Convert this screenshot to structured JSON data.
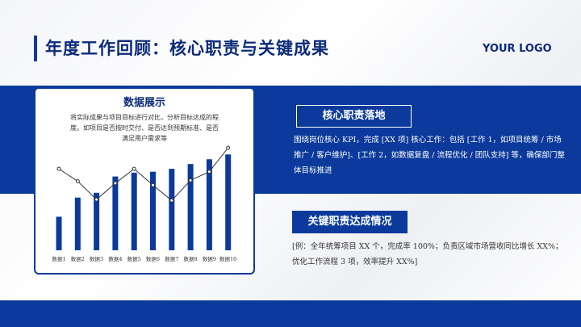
{
  "header": {
    "title": "年度工作回顾：核心职责与关键成果",
    "logo": "YOUR LOGO"
  },
  "chart_data": {
    "type": "bar",
    "title": "数据展示",
    "subtitle": "将实际成果与项目目标进行对比，分析目标达成的程度。如项目是否按时交付、是否达到预期标准、是否满足用户需求等",
    "categories": [
      "数据1",
      "数据2",
      "数据3",
      "数据4",
      "数据5",
      "数据6",
      "数据7",
      "数据8",
      "数据9",
      "数据10"
    ],
    "series": [
      {
        "type": "bar",
        "color": "#0b3a9c",
        "values": [
          35,
          55,
          60,
          77,
          81,
          82,
          85,
          90,
          95,
          100
        ]
      },
      {
        "type": "line",
        "color": "#333333",
        "values": [
          85,
          72,
          53,
          70,
          85,
          68,
          52,
          73,
          82,
          107
        ]
      }
    ]
  },
  "sections": [
    {
      "heading": "核心职责落地",
      "body": "围绕岗位核心 KPI，完成 [XX 项] 核心工作：包括 [工作 1，如项目统筹 / 市场推广 / 客户维护]、[工作 2，如数据复盘 / 流程优化 / 团队支持] 等，确保部门整体目标推进"
    },
    {
      "heading": "关键职责达成情况",
      "body": "[例：全年统筹项目 XX 个，完成率 100%；负责区域市场营收同比增长 XX%；优化工作流程 3 项，效率提升 XX%]"
    }
  ]
}
